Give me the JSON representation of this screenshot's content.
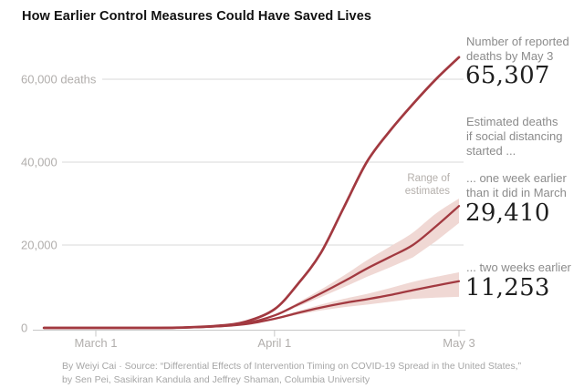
{
  "title": "How Earlier Control Measures Could Have Saved Lives",
  "annotations": {
    "reported_note": [
      "Number of reported",
      "deaths by May 3"
    ],
    "reported_value": "65,307",
    "estimated_note": [
      "Estimated deaths",
      "if social distancing",
      "started ..."
    ],
    "one_week_note": [
      "... one week earlier",
      "than it did in March"
    ],
    "one_week_value": "29,410",
    "range_label": [
      "Range of",
      "estimates"
    ],
    "two_weeks_note": [
      "... two weeks earlier"
    ],
    "two_weeks_value": "11,253"
  },
  "footer": {
    "line1": "By Weiyi Cai · Source: “Differential Effects of Intervention Timing on COVID-19 Spread in the United States,”",
    "line2": "by Sen Pei, Sasikiran Kandula and Jeffrey Shaman, Columbia University"
  },
  "colors": {
    "line": "#a23940",
    "band": "#f0d8d4",
    "grid": "#d9d9d9",
    "axis": "#c7c7c7",
    "tick_label": "#b1aeac",
    "note_gray": "#8b8b8b",
    "value_black": "#1f1f1f"
  },
  "chart_data": {
    "type": "line",
    "title": "How Earlier Control Measures Could Have Saved Lives",
    "xlabel": "",
    "ylabel": "deaths",
    "x_unit": "days since March 1 (domain shown: ~Feb 20 to May 3)",
    "ylim": [
      0,
      68000
    ],
    "grid": "horizontal",
    "x_ticks": [
      {
        "label": "March 1",
        "day": 0
      },
      {
        "label": "April 1",
        "day": 31
      },
      {
        "label": "May 3",
        "day": 63
      }
    ],
    "y_ticks": [
      {
        "label": "0",
        "value": 0
      },
      {
        "label": "20,000",
        "value": 20000
      },
      {
        "label": "40,000",
        "value": 40000
      },
      {
        "label": "60,000 deaths",
        "value": 60000
      }
    ],
    "days": [
      -9,
      0,
      7,
      14,
      21,
      26,
      31,
      35,
      39,
      43,
      47,
      51,
      55,
      59,
      63
    ],
    "series": [
      {
        "name": "reported_deaths",
        "final_value": 65307,
        "values": [
          0,
          0,
          5,
          50,
          500,
          1500,
          4500,
          10500,
          18000,
          29000,
          40000,
          47500,
          54000,
          60000,
          65307
        ]
      },
      {
        "name": "one_week_earlier_estimate",
        "final_value": 29410,
        "values": [
          0,
          0,
          5,
          45,
          400,
          1100,
          3000,
          5600,
          8300,
          11200,
          14300,
          17100,
          20000,
          24500,
          29410
        ],
        "low": [
          0,
          0,
          5,
          45,
          400,
          1050,
          2800,
          5100,
          7400,
          9800,
          12300,
          14600,
          17000,
          20900,
          25300
        ],
        "high": [
          0,
          0,
          5,
          45,
          400,
          1150,
          3200,
          6100,
          9200,
          12600,
          16300,
          19600,
          23000,
          27600,
          31200
        ]
      },
      {
        "name": "two_weeks_earlier_estimate",
        "final_value": 11253,
        "values": [
          0,
          0,
          5,
          40,
          350,
          900,
          2200,
          3600,
          4900,
          6000,
          6900,
          7900,
          9100,
          10200,
          11253
        ],
        "low": [
          0,
          0,
          5,
          40,
          340,
          850,
          2000,
          3200,
          4200,
          5000,
          5600,
          6300,
          7000,
          7300,
          7500
        ],
        "high": [
          0,
          0,
          5,
          40,
          360,
          950,
          2400,
          4000,
          5600,
          7000,
          8200,
          9600,
          11100,
          12300,
          13400
        ]
      }
    ]
  }
}
